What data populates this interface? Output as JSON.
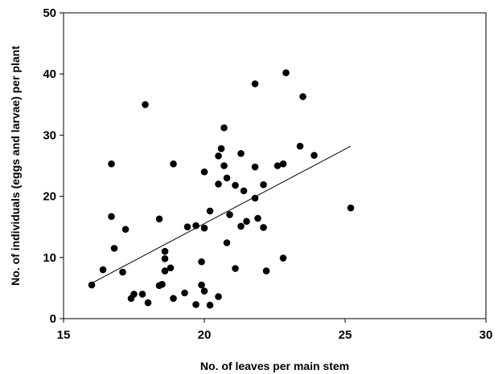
{
  "chart_data": {
    "type": "scatter",
    "title": "",
    "xlabel": "No. of leaves per main stem",
    "ylabel": "No. of individuals (eggs and larvae) per plant",
    "xlim": [
      15,
      30
    ],
    "ylim": [
      0,
      50
    ],
    "xticks": [
      "15",
      "20",
      "25",
      "30"
    ],
    "yticks": [
      "0",
      "10",
      "20",
      "30",
      "40",
      "50"
    ],
    "grid": false,
    "legend": "none",
    "marker_color": "#000000",
    "series": [
      {
        "points": [
          [
            16.0,
            5.5
          ],
          [
            16.4,
            8.0
          ],
          [
            16.7,
            25.3
          ],
          [
            16.7,
            16.7
          ],
          [
            16.8,
            11.5
          ],
          [
            17.1,
            7.6
          ],
          [
            17.2,
            14.6
          ],
          [
            17.4,
            3.3
          ],
          [
            17.5,
            4.0
          ],
          [
            17.8,
            4.0
          ],
          [
            17.9,
            35.0
          ],
          [
            18.0,
            2.6
          ],
          [
            18.4,
            16.3
          ],
          [
            18.4,
            5.4
          ],
          [
            18.5,
            5.6
          ],
          [
            18.6,
            7.8
          ],
          [
            18.6,
            11.0
          ],
          [
            18.6,
            9.8
          ],
          [
            18.8,
            8.3
          ],
          [
            18.9,
            25.3
          ],
          [
            18.9,
            3.3
          ],
          [
            19.3,
            4.2
          ],
          [
            19.4,
            15.0
          ],
          [
            19.7,
            15.2
          ],
          [
            19.7,
            2.3
          ],
          [
            19.9,
            9.3
          ],
          [
            19.9,
            5.5
          ],
          [
            20.0,
            24.0
          ],
          [
            20.0,
            14.8
          ],
          [
            20.0,
            4.5
          ],
          [
            20.2,
            17.6
          ],
          [
            20.2,
            2.2
          ],
          [
            20.5,
            26.6
          ],
          [
            20.5,
            22.0
          ],
          [
            20.5,
            3.6
          ],
          [
            20.6,
            27.8
          ],
          [
            20.7,
            31.2
          ],
          [
            20.7,
            25.0
          ],
          [
            20.8,
            23.0
          ],
          [
            20.8,
            12.4
          ],
          [
            20.9,
            17.0
          ],
          [
            21.1,
            21.8
          ],
          [
            21.1,
            8.2
          ],
          [
            21.3,
            27.0
          ],
          [
            21.3,
            15.1
          ],
          [
            21.4,
            20.9
          ],
          [
            21.5,
            15.9
          ],
          [
            21.8,
            38.4
          ],
          [
            21.8,
            24.8
          ],
          [
            21.8,
            19.7
          ],
          [
            21.9,
            16.4
          ],
          [
            22.1,
            21.9
          ],
          [
            22.1,
            14.9
          ],
          [
            22.2,
            7.8
          ],
          [
            22.6,
            25.0
          ],
          [
            22.8,
            25.3
          ],
          [
            22.8,
            9.9
          ],
          [
            22.9,
            40.2
          ],
          [
            23.4,
            28.2
          ],
          [
            23.5,
            36.3
          ],
          [
            23.9,
            26.7
          ],
          [
            25.2,
            18.1
          ]
        ]
      }
    ],
    "trendline": {
      "x": [
        16.0,
        25.2
      ],
      "y": [
        5.8,
        28.2
      ]
    }
  }
}
